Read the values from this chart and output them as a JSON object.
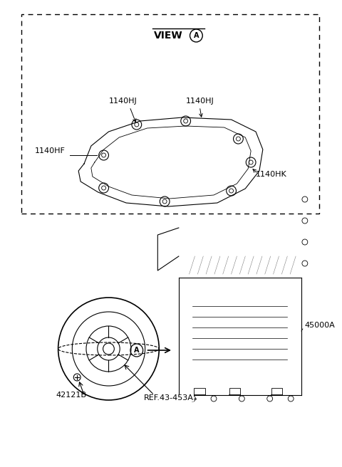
{
  "bg_color": "#ffffff",
  "line_color": "#000000",
  "gray_color": "#888888",
  "light_gray": "#cccccc",
  "fig_width": 4.8,
  "fig_height": 6.56,
  "dpi": 100,
  "labels": {
    "part_42121B": "42121B",
    "ref_label": "REF.43-453A",
    "part_45000A": "45000A",
    "part_1140HJ_1": "1140HJ",
    "part_1140HJ_2": "1140HJ",
    "part_1140HF": "1140HF",
    "part_1140HK": "1140HK",
    "view_label": "VIEW"
  }
}
